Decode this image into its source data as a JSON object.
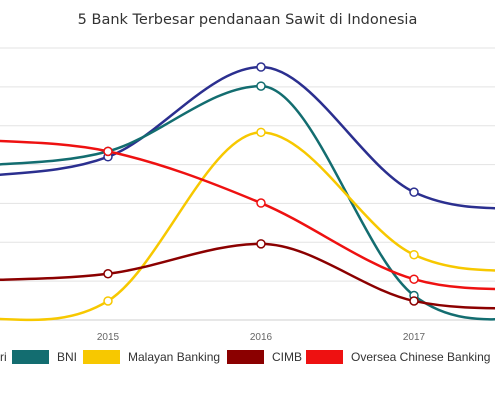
{
  "chart_data": {
    "type": "line",
    "title": "5 Bank Terbesar pendanaan Sawit di Indonesia",
    "x": [
      "2015",
      "2016",
      "2017"
    ],
    "ylim": [
      0,
      100
    ],
    "grid": true,
    "legend_position": "bottom",
    "series": [
      {
        "name": "Mandiri",
        "color": "#2b2f8f",
        "values": [
          60,
          93,
          47
        ]
      },
      {
        "name": "BNI",
        "color": "#136d70",
        "values": [
          62,
          86,
          9
        ]
      },
      {
        "name": "Malayan Banking",
        "color": "#f7c800",
        "values": [
          7,
          69,
          24
        ]
      },
      {
        "name": "CIMB",
        "color": "#8b0000",
        "values": [
          17,
          28,
          7
        ]
      },
      {
        "name": "Oversea Chinese Banking",
        "color": "#ee1111",
        "values": [
          62,
          43,
          15
        ]
      }
    ],
    "legend_labels": [
      "ri",
      "BNI",
      "Malayan Banking",
      "CIMB",
      "Oversea Chinese Banking"
    ]
  }
}
